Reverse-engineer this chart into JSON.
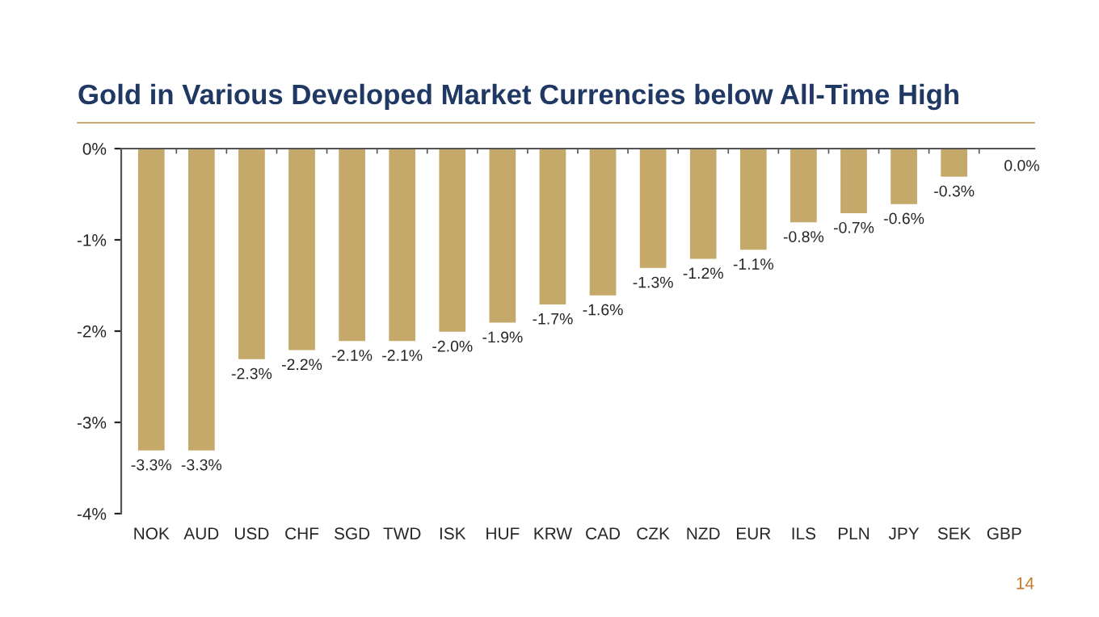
{
  "chart_data": {
    "type": "bar",
    "title": "Gold in Various Developed Market Currencies below All-Time High",
    "categories": [
      "NOK",
      "AUD",
      "USD",
      "CHF",
      "SGD",
      "TWD",
      "ISK",
      "HUF",
      "KRW",
      "CAD",
      "CZK",
      "NZD",
      "EUR",
      "ILS",
      "PLN",
      "JPY",
      "SEK",
      "GBP"
    ],
    "values": [
      -3.3,
      -3.3,
      -2.3,
      -2.2,
      -2.1,
      -2.1,
      -2.0,
      -1.9,
      -1.7,
      -1.6,
      -1.3,
      -1.2,
      -1.1,
      -0.8,
      -0.7,
      -0.6,
      -0.3,
      0.0
    ],
    "value_labels": [
      "-3.3%",
      "-3.3%",
      "-2.3%",
      "-2.2%",
      "-2.1%",
      "-2.1%",
      "-2.0%",
      "-1.9%",
      "-1.7%",
      "-1.6%",
      "-1.3%",
      "-1.2%",
      "-1.1%",
      "-0.8%",
      "-0.7%",
      "-0.6%",
      "-0.3%",
      "0.0%"
    ],
    "color": "#c4a96b",
    "ylim": [
      -4,
      0
    ],
    "yticks": [
      {
        "value": 0,
        "label": "0%"
      },
      {
        "value": -1,
        "label": "-1%"
      },
      {
        "value": -2,
        "label": "-2%"
      },
      {
        "value": -3,
        "label": "-3%"
      },
      {
        "value": -4,
        "label": "-4%"
      }
    ],
    "grid": false,
    "legend": false,
    "annotations": [
      "14"
    ]
  }
}
